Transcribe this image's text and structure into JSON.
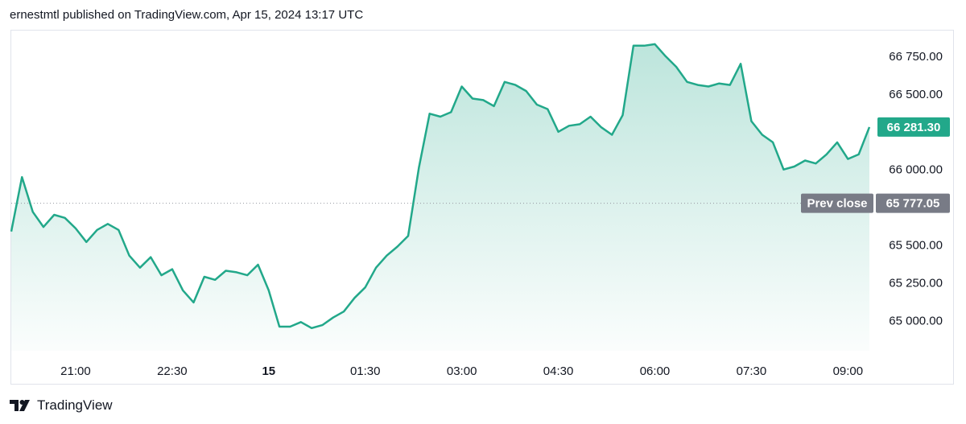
{
  "header": {
    "publisher_line": "ernestmtl published on TradingView.com, Apr 15, 2024 13:17 UTC"
  },
  "footer": {
    "brand": "TradingView"
  },
  "colors": {
    "line": "#22a88a",
    "fill_top": "#22a88a",
    "last_price_badge": "#22a88a",
    "prev_close_badge": "#787b86",
    "prev_close_line": "#9598a1"
  },
  "chart_data": {
    "type": "area",
    "title": "",
    "xlabel": "",
    "ylabel": "",
    "x_ticks": [
      "21:00",
      "22:30",
      "15",
      "01:30",
      "03:00",
      "04:30",
      "06:00",
      "07:30",
      "09:00"
    ],
    "x_tick_bold": [
      false,
      false,
      true,
      false,
      false,
      false,
      false,
      false,
      false
    ],
    "y_ticks": [
      "66 750.00",
      "66 500.00",
      "66 000.00",
      "65 500.00",
      "65 250.00",
      "65 000.00"
    ],
    "ylim": [
      64800,
      66920
    ],
    "x": [
      "20:00",
      "20:10",
      "20:20",
      "20:30",
      "20:40",
      "20:50",
      "21:00",
      "21:10",
      "21:20",
      "21:30",
      "21:40",
      "21:50",
      "22:00",
      "22:10",
      "22:20",
      "22:30",
      "22:40",
      "22:50",
      "23:00",
      "23:10",
      "23:20",
      "23:30",
      "23:40",
      "23:50",
      "00:00",
      "00:10",
      "00:20",
      "00:30",
      "00:40",
      "00:50",
      "01:00",
      "01:10",
      "01:20",
      "01:30",
      "01:40",
      "01:50",
      "02:00",
      "02:10",
      "02:20",
      "02:30",
      "02:40",
      "02:50",
      "03:00",
      "03:10",
      "03:20",
      "03:30",
      "03:40",
      "03:50",
      "04:00",
      "04:10",
      "04:20",
      "04:30",
      "04:40",
      "04:50",
      "05:00",
      "05:10",
      "05:20",
      "05:30",
      "05:40",
      "05:50",
      "06:00",
      "06:10",
      "06:20",
      "06:30",
      "06:40",
      "06:50",
      "07:00",
      "07:10",
      "07:20",
      "07:30",
      "07:40",
      "07:50",
      "08:00",
      "08:10",
      "08:20",
      "08:30",
      "08:40",
      "08:50",
      "09:00",
      "09:10",
      "09:20"
    ],
    "series": [
      {
        "values": [
          65590,
          65950,
          65720,
          65620,
          65700,
          65680,
          65610,
          65520,
          65600,
          65640,
          65600,
          65430,
          65350,
          65420,
          65300,
          65340,
          65200,
          65120,
          65290,
          65270,
          65330,
          65320,
          65300,
          65370,
          65200,
          64960,
          64960,
          64990,
          64950,
          64970,
          65020,
          65060,
          65150,
          65220,
          65350,
          65430,
          65490,
          65560,
          66010,
          66370,
          66350,
          66380,
          66550,
          66470,
          66460,
          66420,
          66580,
          66560,
          66520,
          66430,
          66400,
          66250,
          66290,
          66300,
          66350,
          66280,
          66230,
          66360,
          66820,
          66820,
          66830,
          66750,
          66680,
          66580,
          66560,
          66550,
          66570,
          66560,
          66700,
          66320,
          66230,
          66180,
          66000,
          66020,
          66060,
          66040,
          66100,
          66180,
          66070,
          66100,
          66281.3
        ]
      }
    ],
    "last_price": 66281.3,
    "last_price_label": "66 281.30",
    "prev_close": 65777.05,
    "prev_close_value_label": "65 777.05",
    "prev_close_label": "Prev close",
    "grid": false
  }
}
